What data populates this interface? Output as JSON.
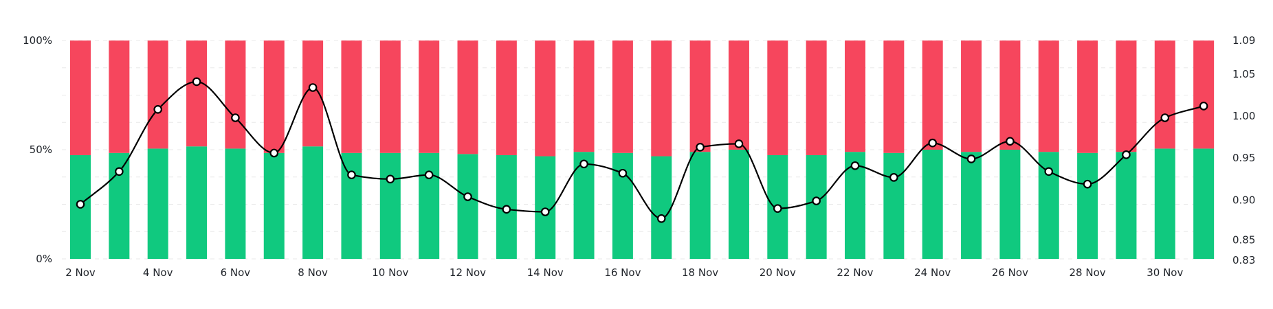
{
  "chart_data": {
    "type": "bar",
    "stacked_percent": true,
    "categories": [
      "2 Nov",
      "3 Nov",
      "4 Nov",
      "5 Nov",
      "6 Nov",
      "7 Nov",
      "8 Nov",
      "9 Nov",
      "10 Nov",
      "11 Nov",
      "12 Nov",
      "13 Nov",
      "14 Nov",
      "15 Nov",
      "16 Nov",
      "17 Nov",
      "18 Nov",
      "19 Nov",
      "20 Nov",
      "21 Nov",
      "22 Nov",
      "23 Nov",
      "24 Nov",
      "25 Nov",
      "26 Nov",
      "27 Nov",
      "28 Nov",
      "29 Nov",
      "30 Nov",
      "1 Dec"
    ],
    "x_tick_labels": [
      "2 Nov",
      "4 Nov",
      "6 Nov",
      "8 Nov",
      "10 Nov",
      "12 Nov",
      "14 Nov",
      "16 Nov",
      "18 Nov",
      "20 Nov",
      "22 Nov",
      "24 Nov",
      "26 Nov",
      "28 Nov",
      "30 Nov"
    ],
    "series": [
      {
        "color": "#10c97f",
        "values": [
          47.5,
          48.5,
          50.5,
          51.5,
          50.5,
          48.5,
          51.5,
          48.5,
          48.5,
          48.5,
          48,
          47.5,
          47,
          49,
          48.5,
          47,
          49,
          50,
          47.5,
          47.5,
          49,
          48.5,
          50,
          49,
          50,
          49,
          48.5,
          49,
          50.5,
          50.5
        ]
      },
      {
        "color": "#f6465d",
        "values": [
          52.5,
          51.5,
          49.5,
          48.5,
          49.5,
          51.5,
          48.5,
          51.5,
          51.5,
          51.5,
          52,
          52.5,
          53,
          51,
          51.5,
          53,
          51,
          50,
          52.5,
          52.5,
          51,
          51.5,
          50,
          51,
          50,
          51,
          51.5,
          51,
          49.5,
          49.5
        ]
      }
    ],
    "line": {
      "axis": "right",
      "color": "#000000",
      "values": [
        0.895,
        0.934,
        1.008,
        1.041,
        0.998,
        0.956,
        1.034,
        0.93,
        0.925,
        0.93,
        0.904,
        0.889,
        0.886,
        0.943,
        0.932,
        0.878,
        0.963,
        0.967,
        0.89,
        0.899,
        0.941,
        0.927,
        0.968,
        0.949,
        0.97,
        0.934,
        0.919,
        0.954,
        0.998,
        1.012
      ]
    },
    "y_left": {
      "ylim": [
        0,
        100
      ],
      "tick_labels": [
        "0%",
        "50%",
        "100%"
      ],
      "ticks": [
        0,
        50,
        100
      ]
    },
    "y_right": {
      "ylim": [
        0.83,
        1.09
      ],
      "tick_labels": [
        "0.83",
        "0.85",
        "0.90",
        "0.95",
        "1.00",
        "1.05",
        "1.09"
      ],
      "ticks": [
        0.83,
        0.85,
        0.9,
        0.95,
        1.0,
        1.05,
        1.09
      ]
    },
    "grid": {
      "horizontal": true,
      "style": "dashed"
    },
    "title": "",
    "xlabel": "",
    "ylabel": ""
  }
}
